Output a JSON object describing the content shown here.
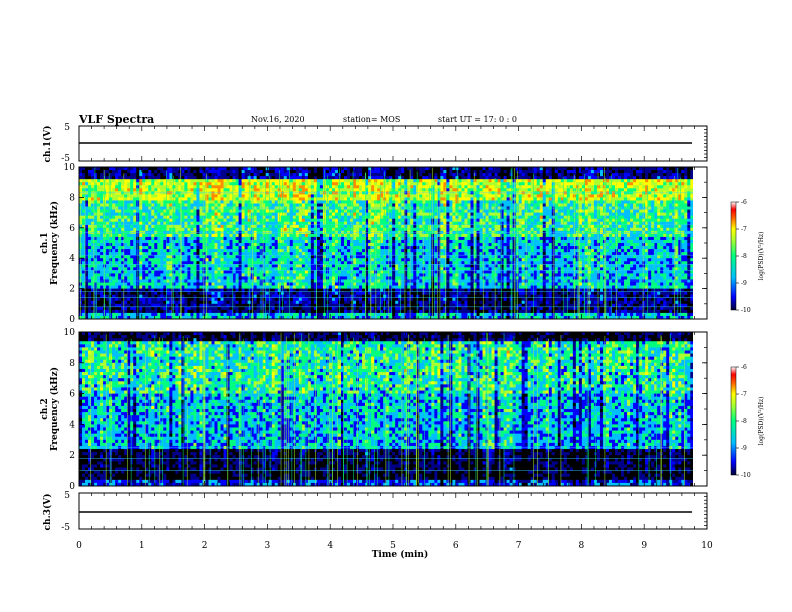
{
  "header": {
    "title": "VLF Spectra",
    "date": "Nov.16, 2020",
    "station": "station= MOS",
    "start": "start  UT =   17: 0  : 0"
  },
  "chart_data": [
    {
      "type": "line",
      "panel": "ch1-waveform",
      "ylabel": "ch.1(V)",
      "ylim": [
        -5,
        5
      ],
      "yticks": [
        "5",
        "-5"
      ],
      "x": [
        0,
        9.83
      ],
      "values": [
        0,
        0
      ],
      "color": "#000000"
    },
    {
      "type": "heatmap",
      "panel": "ch1-spectrogram",
      "ylabel": "Frequency (kHz)",
      "channel_label": "ch.1",
      "xlim": [
        0,
        10
      ],
      "ylim": [
        0,
        10
      ],
      "yticks": [
        "0",
        "2",
        "4",
        "6",
        "8",
        "10"
      ],
      "data_xmax": 9.83,
      "colorbar": {
        "label": "log(PSD)(V²/Hz)",
        "ticks": [
          "-6",
          "-7",
          "-8",
          "-9",
          "-10"
        ],
        "range": [
          -10,
          -6
        ]
      }
    },
    {
      "type": "heatmap",
      "panel": "ch2-spectrogram",
      "ylabel": "Frequency (kHz)",
      "channel_label": "ch.2",
      "xlim": [
        0,
        10
      ],
      "ylim": [
        0,
        10
      ],
      "yticks": [
        "0",
        "2",
        "4",
        "6",
        "8",
        "10"
      ],
      "data_xmax": 9.83,
      "colorbar": {
        "label": "log(PSD)(V²/Hz)",
        "ticks": [
          "-6",
          "-7",
          "-8",
          "-9",
          "-10"
        ],
        "range": [
          -10,
          -6
        ]
      }
    },
    {
      "type": "line",
      "panel": "ch3-waveform",
      "ylabel": "ch.3(V)",
      "ylim": [
        -5,
        5
      ],
      "yticks": [
        "5",
        "-5"
      ],
      "x": [
        0,
        9.83
      ],
      "values": [
        0,
        0
      ],
      "color": "#000000"
    }
  ],
  "xaxis": {
    "label": "Time (min)",
    "xlim": [
      0,
      10
    ],
    "ticks": [
      "0",
      "1",
      "2",
      "3",
      "4",
      "5",
      "6",
      "7",
      "8",
      "9",
      "10"
    ]
  },
  "colormap": [
    "#000000",
    "#00008b",
    "#0000ff",
    "#00bfff",
    "#00ff7f",
    "#adff2f",
    "#ffff00",
    "#ff8c00",
    "#ff0000",
    "#ffffff"
  ]
}
